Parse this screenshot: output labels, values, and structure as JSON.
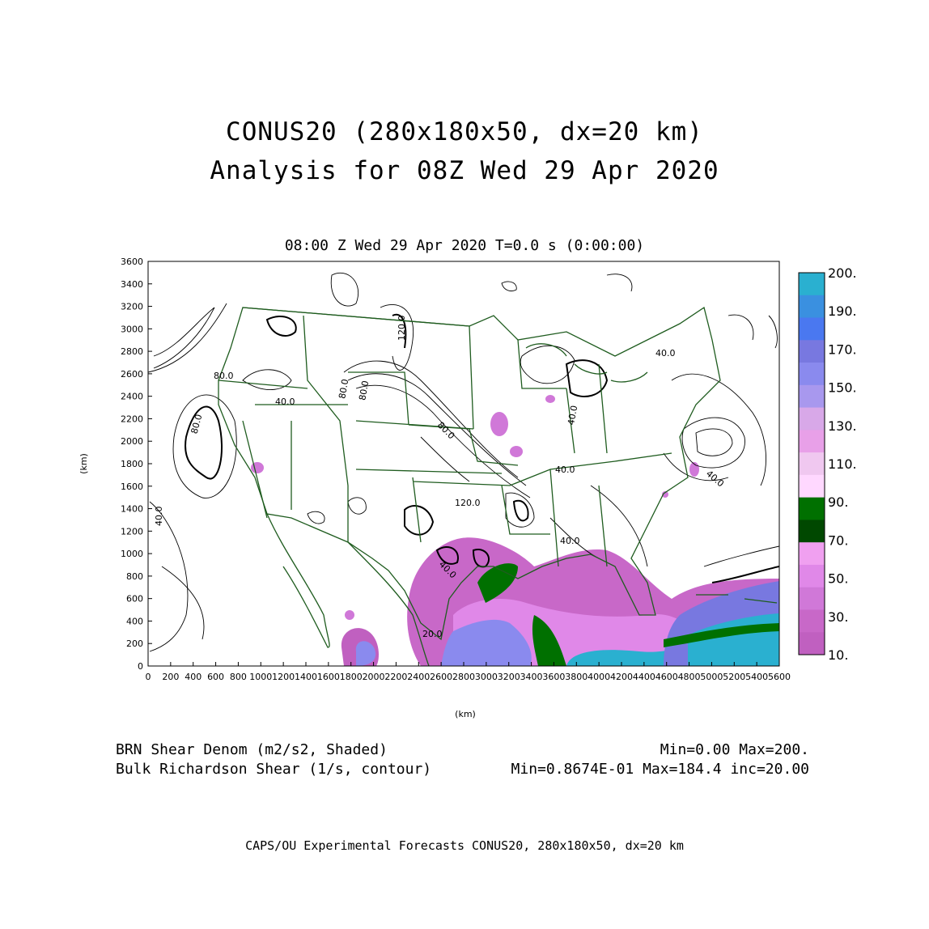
{
  "title_line1": "CONUS20 (280x180x50, dx=20 km)",
  "title_line2": "Analysis for 08Z Wed 29 Apr 2020",
  "subtitle": "08:00 Z Wed 29 Apr 2020    T=0.0 s (0:00:00)",
  "axes": {
    "x_label": "(km)",
    "y_label": "(km)",
    "x_ticks": [
      "0",
      "200",
      "400",
      "600",
      "800",
      "1000",
      "1200",
      "1400",
      "1600",
      "1800",
      "2000",
      "2200",
      "2400",
      "2600",
      "2800",
      "3000",
      "3200",
      "3400",
      "3600",
      "3800",
      "4000",
      "4200",
      "4400",
      "4600",
      "4800",
      "5000",
      "5200",
      "5400",
      "5600"
    ],
    "y_ticks": [
      "0",
      "200",
      "400",
      "600",
      "800",
      "1000",
      "1200",
      "1400",
      "1600",
      "1800",
      "2000",
      "2200",
      "2400",
      "2600",
      "2800",
      "3000",
      "3200",
      "3400",
      "3600"
    ]
  },
  "colorbar": {
    "labels": [
      "200.",
      "190.",
      "170.",
      "150.",
      "130.",
      "110.",
      "90.",
      "70.",
      "50.",
      "30.",
      "10."
    ],
    "colors": [
      "#2ab0d0",
      "#3a90e0",
      "#4a78f0",
      "#7878e0",
      "#8a8aee",
      "#a898ee",
      "#d8a8e8",
      "#e8a0e8",
      "#f0c8f0",
      "#ffd8ff",
      "#007000",
      "#004800",
      "#f0a0f0",
      "#e088e8",
      "#d078d8",
      "#c868c8",
      "#c060c0"
    ]
  },
  "contour_labels": [
    "80.0",
    "120.0",
    "40.0",
    "80.0",
    "40.0",
    "80.0",
    "80.0",
    "120.0",
    "40.0",
    "40.0",
    "40.0",
    "80.0",
    "40.0",
    "20.0",
    "40.0",
    "40.0"
  ],
  "footer": {
    "shaded_label": "BRN Shear Denom (m2/s2, Shaded)",
    "contour_label": "Bulk Richardson Shear (1/s, contour)",
    "shaded_range": "Min=0.00 Max=200.",
    "contour_range": "Min=0.8674E-01 Max=184.4 inc=20.00"
  },
  "credit": "CAPS/OU Experimental Forecasts  CONUS20, 280x180x50, dx=20 km"
}
